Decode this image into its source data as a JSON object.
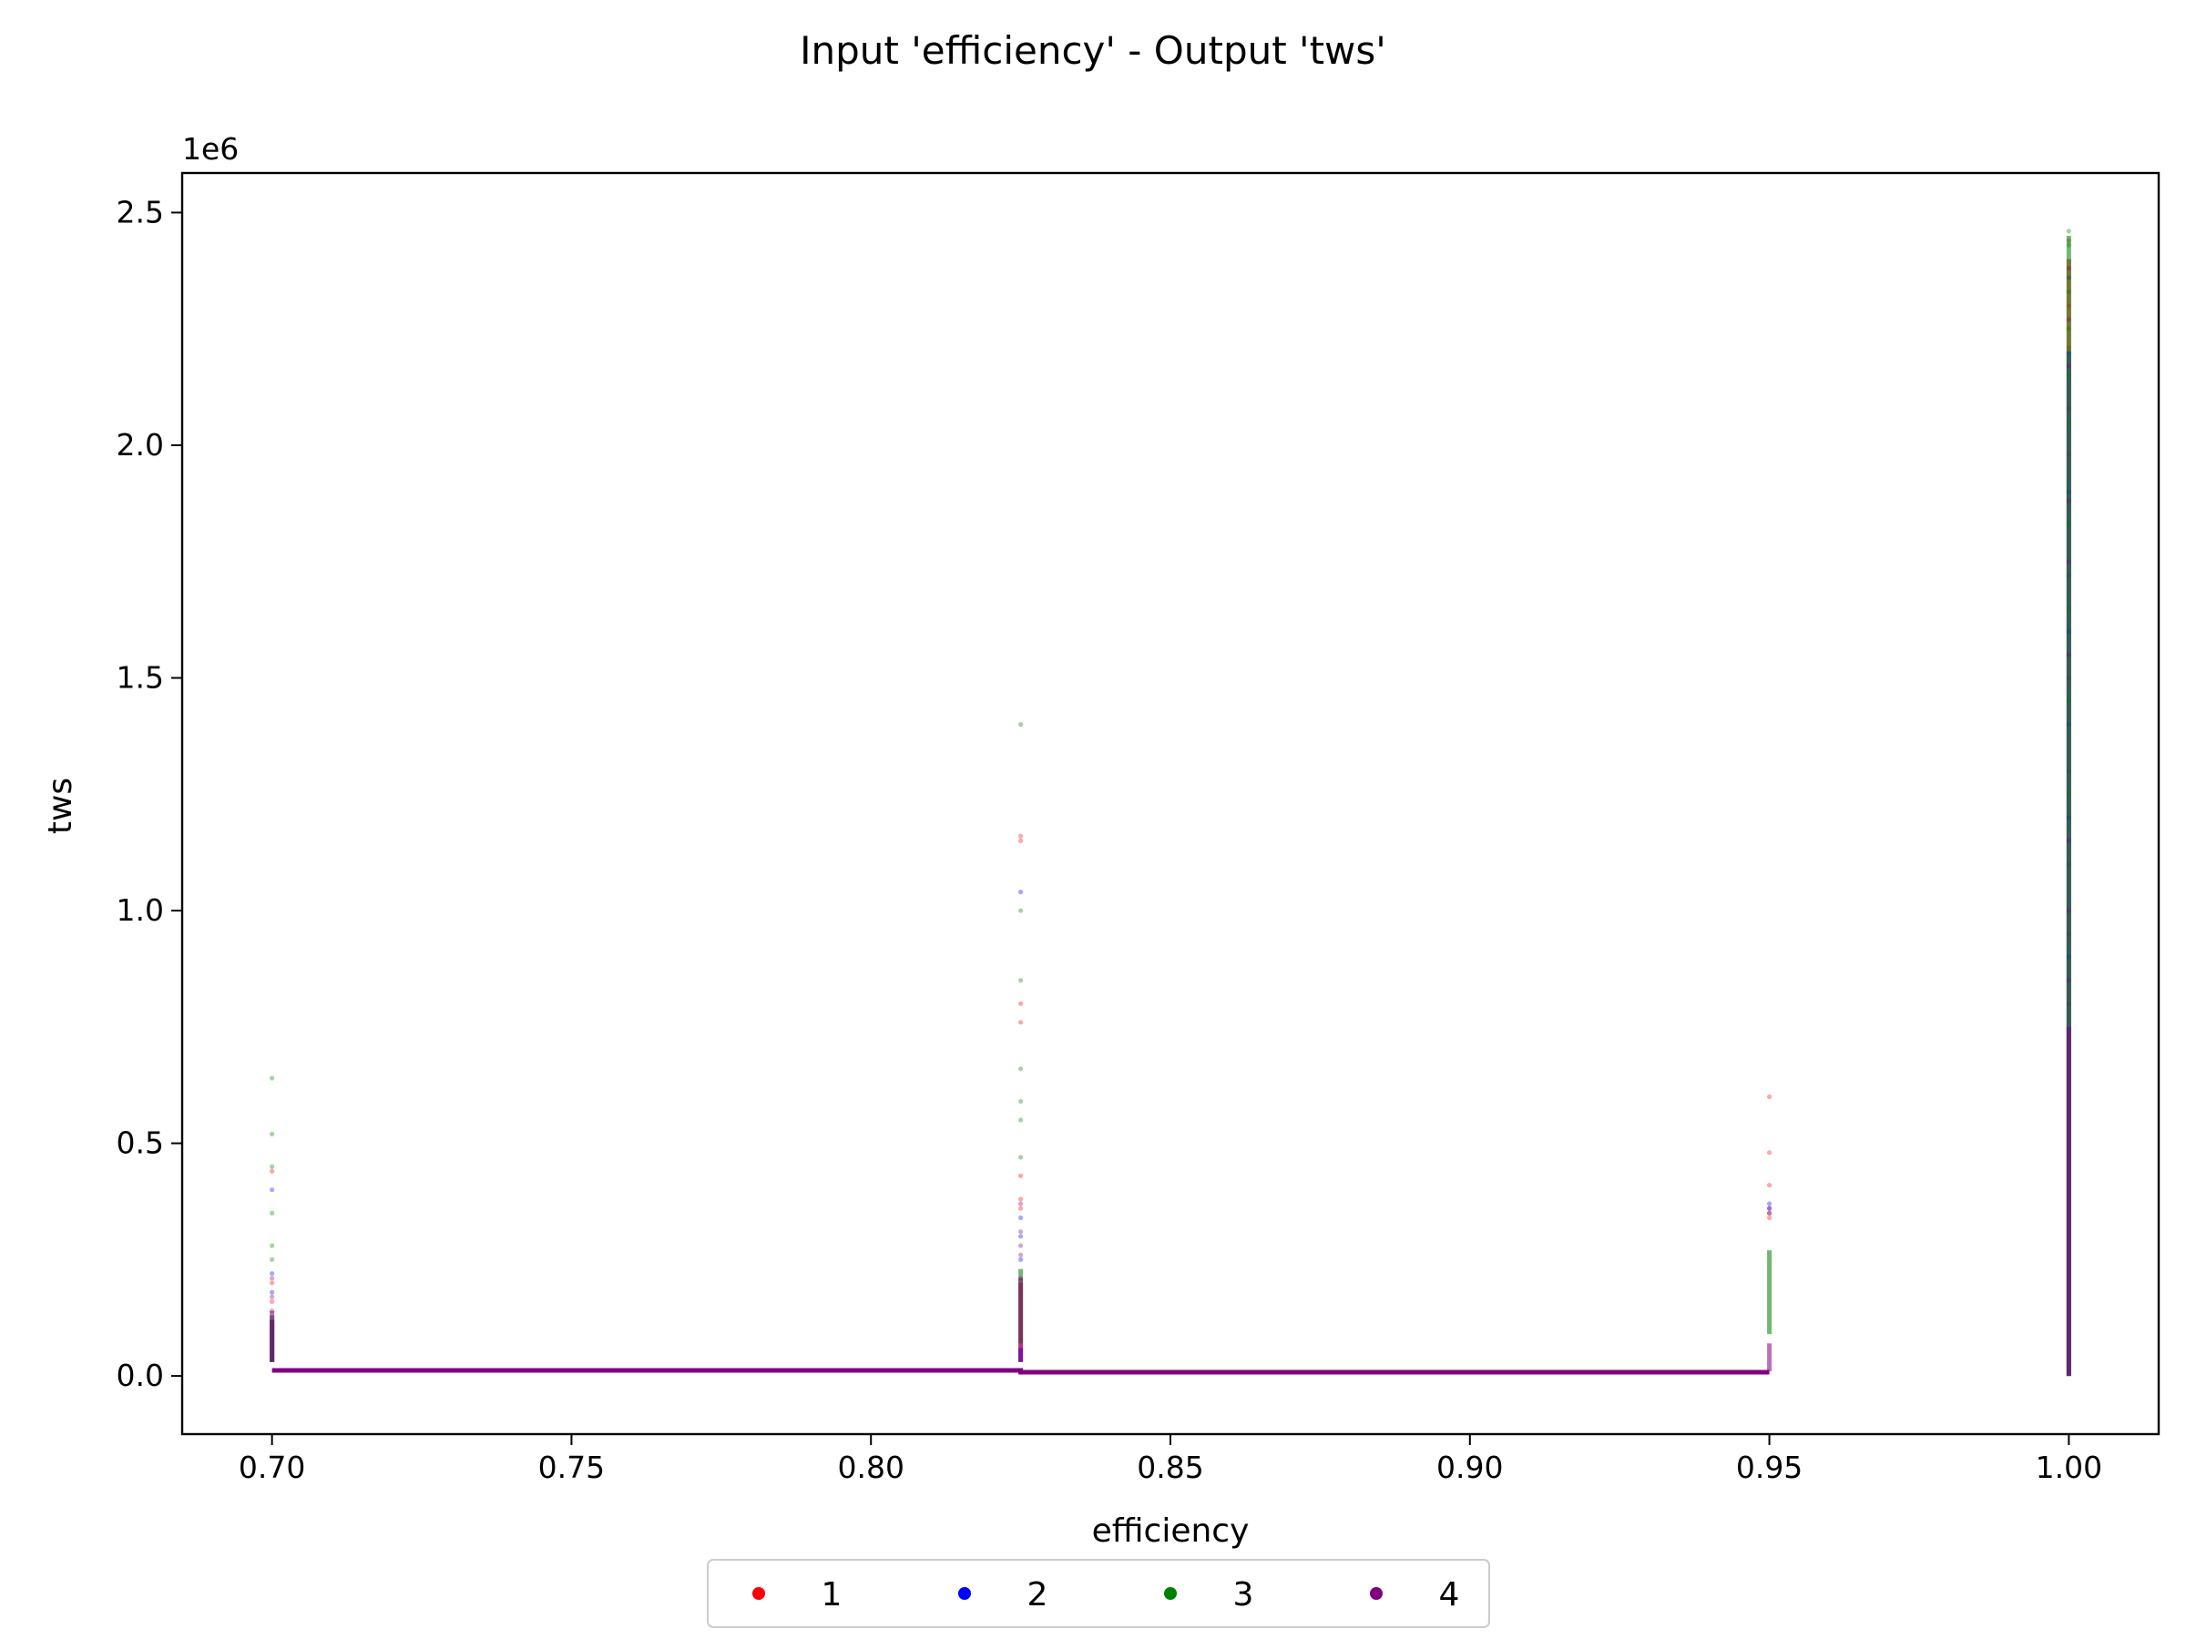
{
  "chart_data": {
    "type": "scatter",
    "title": "Input 'efficiency' - Output 'tws'",
    "xlabel": "efficiency",
    "ylabel": "tws",
    "y_scale_label": "1e6",
    "xlim": [
      0.685,
      1.015
    ],
    "ylim": [
      -0.125,
      2.585
    ],
    "xticks": [
      0.7,
      0.75,
      0.8,
      0.85,
      0.9,
      0.95,
      1.0
    ],
    "xtick_labels": [
      "0.70",
      "0.75",
      "0.80",
      "0.85",
      "0.90",
      "0.95",
      "1.00"
    ],
    "yticks": [
      0.0,
      0.5,
      1.0,
      1.5,
      2.0,
      2.5
    ],
    "ytick_labels": [
      "0.0",
      "0.5",
      "1.0",
      "1.5",
      "2.0",
      "2.5"
    ],
    "grid": false,
    "legend_position": "below-center",
    "series": [
      {
        "name": "1",
        "color": "#ff0000",
        "points": [
          [
            0.7,
            0.44
          ],
          [
            0.7,
            0.2
          ],
          [
            0.7,
            0.16
          ],
          [
            0.7,
            0.14
          ],
          [
            0.825,
            1.16
          ],
          [
            0.825,
            1.15
          ],
          [
            0.825,
            0.8
          ],
          [
            0.825,
            0.76
          ],
          [
            0.825,
            0.43
          ],
          [
            0.825,
            0.38
          ],
          [
            0.825,
            0.36
          ],
          [
            0.95,
            0.6
          ],
          [
            0.95,
            0.48
          ],
          [
            0.95,
            0.41
          ],
          [
            0.95,
            0.35
          ],
          [
            0.95,
            0.34
          ],
          [
            1.0,
            2.44
          ],
          [
            1.0,
            2.3
          ],
          [
            1.0,
            2.21
          ],
          [
            1.0,
            2.08
          ],
          [
            1.0,
            1.98
          ],
          [
            1.0,
            1.72
          ],
          [
            1.0,
            1.5
          ],
          [
            1.0,
            1.3
          ],
          [
            1.0,
            1.1
          ],
          [
            1.0,
            0.95
          ],
          [
            1.0,
            0.8
          ]
        ],
        "lines": [
          {
            "x": 0.7,
            "y0": 0.03,
            "y1": 0.12
          },
          {
            "x": 0.825,
            "y0": 0.03,
            "y1": 0.2
          },
          {
            "x": 1.0,
            "y0": 0.0,
            "y1": 2.4
          }
        ]
      },
      {
        "name": "2",
        "color": "#0000ff",
        "points": [
          [
            0.7,
            0.4
          ],
          [
            0.7,
            0.22
          ],
          [
            0.7,
            0.18
          ],
          [
            0.825,
            1.04
          ],
          [
            0.825,
            0.34
          ],
          [
            0.825,
            0.3
          ],
          [
            0.825,
            0.25
          ],
          [
            0.95,
            0.37
          ],
          [
            0.95,
            0.36
          ],
          [
            1.0,
            2.36
          ],
          [
            1.0,
            2.2
          ],
          [
            1.0,
            1.9
          ],
          [
            1.0,
            1.6
          ],
          [
            1.0,
            1.4
          ],
          [
            1.0,
            1.2
          ],
          [
            1.0,
            0.9
          ]
        ],
        "lines": [
          {
            "x": 0.7,
            "y0": 0.03,
            "y1": 0.12
          },
          {
            "x": 0.825,
            "y0": 0.03,
            "y1": 0.06
          },
          {
            "x": 1.0,
            "y0": 0.0,
            "y1": 2.2
          }
        ]
      },
      {
        "name": "3",
        "color": "#008000",
        "points": [
          [
            0.7,
            0.64
          ],
          [
            0.7,
            0.52
          ],
          [
            0.7,
            0.45
          ],
          [
            0.7,
            0.35
          ],
          [
            0.7,
            0.28
          ],
          [
            0.7,
            0.25
          ],
          [
            0.825,
            1.4
          ],
          [
            0.825,
            1.0
          ],
          [
            0.825,
            0.85
          ],
          [
            0.825,
            0.66
          ],
          [
            0.825,
            0.59
          ],
          [
            0.825,
            0.55
          ],
          [
            0.825,
            0.47
          ],
          [
            1.0,
            2.46
          ],
          [
            1.0,
            2.43
          ],
          [
            1.0,
            2.33
          ],
          [
            1.0,
            2.25
          ],
          [
            1.0,
            2.15
          ],
          [
            1.0,
            2.05
          ],
          [
            1.0,
            1.83
          ],
          [
            1.0,
            1.65
          ],
          [
            1.0,
            1.45
          ],
          [
            1.0,
            1.25
          ]
        ],
        "lines": [
          {
            "x": 0.7,
            "y0": 0.03,
            "y1": 0.13
          },
          {
            "x": 0.825,
            "y0": 0.07,
            "y1": 0.23
          },
          {
            "x": 0.95,
            "y0": 0.09,
            "y1": 0.27
          },
          {
            "x": 1.0,
            "y0": 0.0,
            "y1": 2.45
          }
        ]
      },
      {
        "name": "4",
        "color": "#800080",
        "points": [
          [
            0.7,
            0.21
          ],
          [
            0.7,
            0.17
          ],
          [
            0.825,
            0.37
          ],
          [
            0.825,
            0.31
          ],
          [
            0.825,
            0.28
          ],
          [
            0.825,
            0.26
          ],
          [
            0.825,
            0.21
          ],
          [
            0.95,
            0.36
          ],
          [
            0.95,
            0.35
          ],
          [
            1.0,
            2.38
          ],
          [
            1.0,
            2.27
          ],
          [
            1.0,
            2.17
          ],
          [
            1.0,
            1.88
          ],
          [
            1.0,
            1.75
          ],
          [
            1.0,
            1.55
          ],
          [
            1.0,
            1.15
          ],
          [
            1.0,
            1.0
          ],
          [
            1.0,
            0.85
          ]
        ],
        "lines": [
          {
            "x": 0.7,
            "y0": 0.03,
            "y1": 0.14
          },
          {
            "x": 0.825,
            "y0": 0.03,
            "y1": 0.21
          },
          {
            "x": 0.95,
            "y0": 0.01,
            "y1": 0.07
          },
          {
            "x": 1.0,
            "y0": 0.0,
            "y1": 0.75
          }
        ],
        "baseline": [
          [
            0.7,
            0.012
          ],
          [
            0.825,
            0.012
          ],
          [
            0.825,
            0.008
          ],
          [
            0.95,
            0.008
          ]
        ]
      }
    ]
  }
}
